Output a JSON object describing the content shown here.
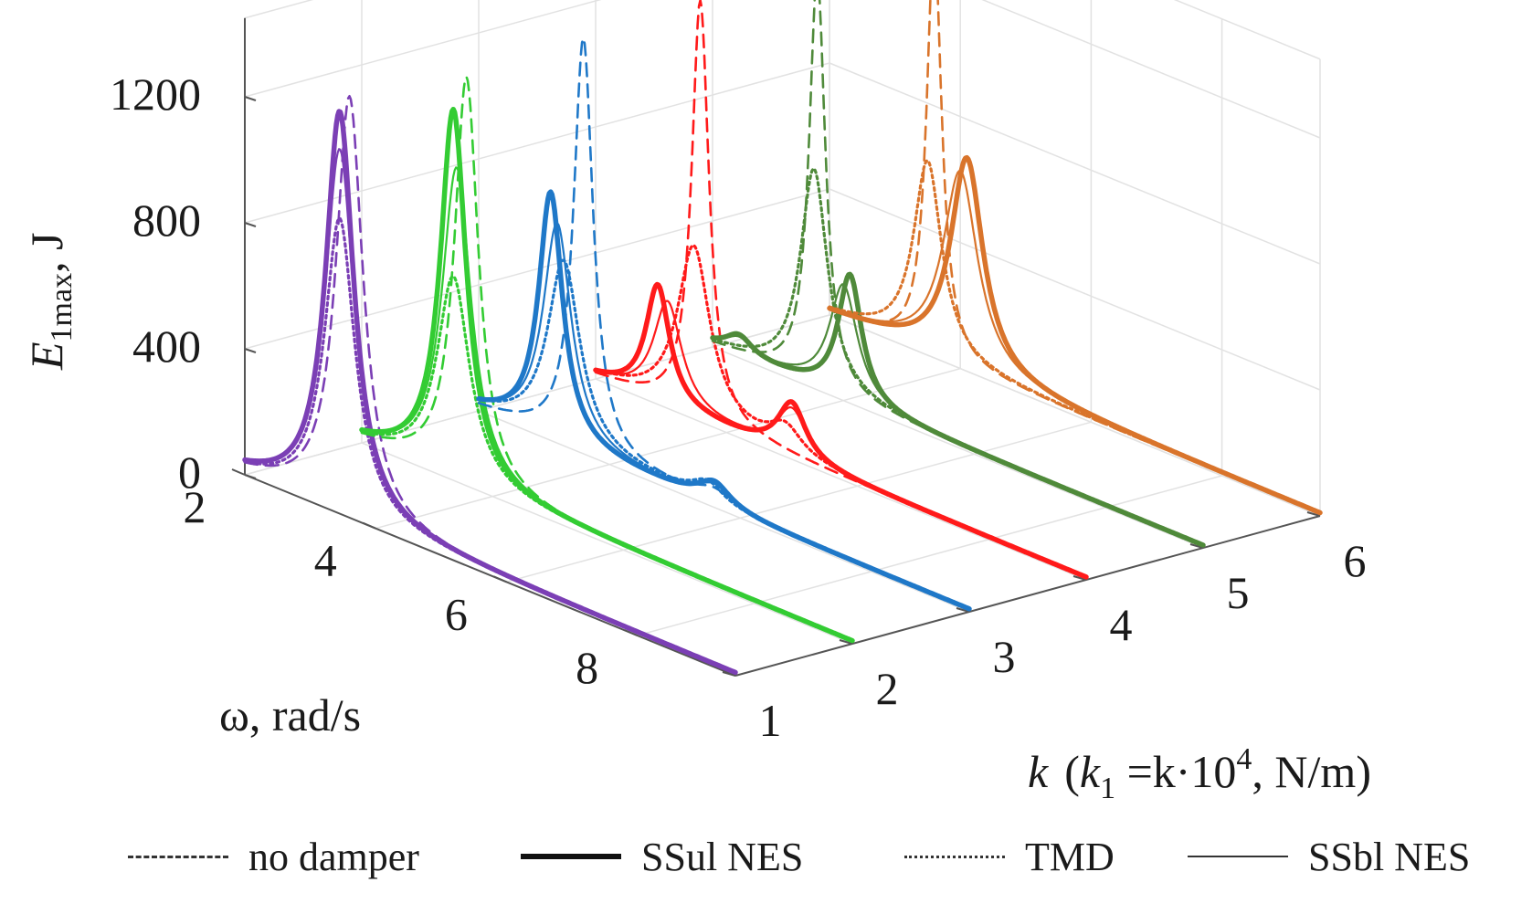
{
  "chart_data": {
    "type": "line",
    "view": "3d-waterfall",
    "zlabel": "E",
    "zlabel_sub": "1max",
    "zlabel_unit": ", J",
    "xlabel": "ω, rad/s",
    "ylabel_k": "k",
    "ylabel_rest": "(k",
    "ylabel_sub": "1",
    "ylabel_eq": " =k·10",
    "ylabel_exp": "4",
    "ylabel_unit": ", N/m)",
    "z_ticks": [
      "0",
      "400",
      "800",
      "1200"
    ],
    "z_tick_values": [
      0,
      400,
      800,
      1200
    ],
    "omega_ticks": [
      "2",
      "4",
      "6",
      "8"
    ],
    "omega_tick_values": [
      2,
      4,
      6,
      8
    ],
    "k_ticks": [
      "1",
      "2",
      "3",
      "4",
      "5",
      "6"
    ],
    "k_tick_values": [
      1,
      2,
      3,
      4,
      5,
      6
    ],
    "omega_range": [
      2,
      9.5
    ],
    "z_range": [
      0,
      1450
    ],
    "k_range": [
      1,
      6
    ],
    "grid": true,
    "legend_position": "bottom",
    "colors": [
      "#7b3fb5",
      "#33cc33",
      "#1f78c8",
      "#ff1a1a",
      "#4f8a3a",
      "#d9742b"
    ],
    "slices": [
      {
        "k": 1,
        "no_damper": [
          {
            "w": 3.6,
            "a": 1330,
            "s": 0.25
          }
        ],
        "tmd": [
          {
            "w": 3.45,
            "a": 930,
            "s": 0.28
          }
        ],
        "ssul": [
          {
            "w": 3.45,
            "a": 1270,
            "s": 0.26
          }
        ],
        "ssbl": [
          {
            "w": 3.45,
            "a": 1150,
            "s": 0.27
          }
        ]
      },
      {
        "k": 2,
        "no_damper": [
          {
            "w": 3.6,
            "a": 1290,
            "s": 0.22
          }
        ],
        "tmd": [
          {
            "w": 3.4,
            "a": 640,
            "s": 0.3
          }
        ],
        "ssul": [
          {
            "w": 3.4,
            "a": 1170,
            "s": 0.24
          }
        ],
        "ssbl": [
          {
            "w": 3.45,
            "a": 990,
            "s": 0.27
          }
        ]
      },
      {
        "k": 3,
        "no_damper": [
          {
            "w": 3.6,
            "a": 1310,
            "s": 0.18
          },
          {
            "w": 5.6,
            "a": 45,
            "s": 0.35
          }
        ],
        "tmd": [
          {
            "w": 3.3,
            "a": 580,
            "s": 0.3
          },
          {
            "w": 5.5,
            "a": 60,
            "s": 0.3
          }
        ],
        "ssul": [
          {
            "w": 3.1,
            "a": 780,
            "s": 0.22
          },
          {
            "w": 5.6,
            "a": 70,
            "s": 0.3
          }
        ],
        "ssbl": [
          {
            "w": 3.2,
            "a": 690,
            "s": 0.26
          },
          {
            "w": 5.6,
            "a": 60,
            "s": 0.3
          }
        ]
      },
      {
        "k": 4,
        "no_damper": [
          {
            "w": 3.6,
            "a": 1330,
            "s": 0.16
          }
        ],
        "tmd": [
          {
            "w": 3.5,
            "a": 540,
            "s": 0.3
          },
          {
            "w": 4.9,
            "a": 80,
            "s": 0.3
          }
        ],
        "ssul": [
          {
            "w": 2.95,
            "a": 370,
            "s": 0.22
          },
          {
            "w": 5.0,
            "a": 170,
            "s": 0.26
          }
        ],
        "ssbl": [
          {
            "w": 3.1,
            "a": 330,
            "s": 0.26
          },
          {
            "w": 5.0,
            "a": 150,
            "s": 0.28
          }
        ]
      },
      {
        "k": 5,
        "no_damper": [
          {
            "w": 3.6,
            "a": 1310,
            "s": 0.15
          }
        ],
        "tmd": [
          {
            "w": 3.55,
            "a": 690,
            "s": 0.25
          }
        ],
        "ssul": [
          {
            "w": 2.4,
            "a": 60,
            "s": 0.25
          },
          {
            "w": 4.1,
            "a": 400,
            "s": 0.22
          }
        ],
        "ssbl": [
          {
            "w": 2.4,
            "a": 50,
            "s": 0.25
          },
          {
            "w": 4.0,
            "a": 360,
            "s": 0.26
          }
        ]
      },
      {
        "k": 6,
        "no_damper": [
          {
            "w": 3.6,
            "a": 1320,
            "s": 0.14
          }
        ],
        "tmd": [
          {
            "w": 3.5,
            "a": 610,
            "s": 0.26
          }
        ],
        "ssul": [
          {
            "w": 4.1,
            "a": 670,
            "s": 0.3
          }
        ],
        "ssbl": [
          {
            "w": 4.0,
            "a": 620,
            "s": 0.32
          }
        ]
      }
    ]
  },
  "legend": {
    "no_damper": "no damper",
    "ssul": "SSul NES",
    "tmd": "TMD",
    "ssbl": "SSbl NES"
  }
}
